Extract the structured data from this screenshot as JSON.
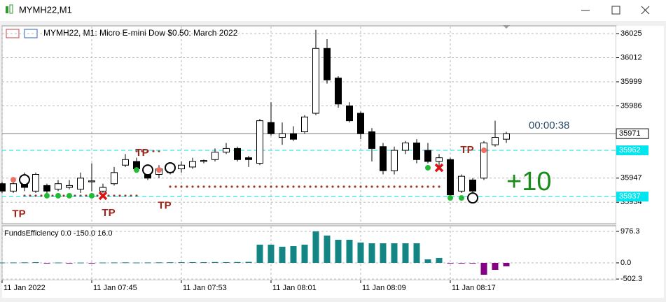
{
  "window": {
    "title": "MYMH22,M1"
  },
  "chart_data": [
    {
      "type": "candlestick",
      "title": "MYMH22, M1:  Micro E-mini Dow $0.50: March 2022",
      "categories": [
        "11 Jan 2022",
        null,
        null,
        null,
        null,
        null,
        null,
        null,
        "11 Jan 07:45",
        null,
        null,
        null,
        null,
        null,
        null,
        null,
        "11 Jan 07:53",
        null,
        null,
        null,
        null,
        null,
        null,
        null,
        "11 Jan 08:01",
        null,
        null,
        null,
        null,
        null,
        null,
        null,
        "11 Jan 08:09",
        null,
        null,
        null,
        null,
        null,
        null,
        null,
        "11 Jan 08:17",
        null,
        null,
        null,
        null,
        null
      ],
      "open": [
        35944,
        35940,
        35947,
        35940,
        35943,
        35941,
        35942,
        35941,
        35945,
        35940,
        35944,
        35954,
        35956,
        35952,
        35949,
        35950,
        35952,
        35953,
        35956,
        35957,
        35961,
        35963,
        35958,
        35955,
        35977,
        35969,
        35971,
        35972,
        35982,
        36017,
        36001,
        35986,
        35982,
        35972,
        35964,
        35951,
        35962,
        35966,
        35962,
        35956,
        35957,
        35940,
        35946,
        35947,
        35965,
        35968
      ],
      "high": [
        35945,
        35945,
        35950,
        35950,
        35944,
        35946,
        35946,
        35950,
        35955,
        35944,
        35953,
        35960,
        35958,
        35953,
        35954,
        35955,
        35956,
        35958,
        35957,
        35963,
        35966,
        35964,
        35959,
        35979,
        35988,
        35977,
        35975,
        35981,
        36027,
        36022,
        36002,
        35988,
        35983,
        35974,
        35966,
        35964,
        35967,
        35968,
        35966,
        35960,
        35958,
        35949,
        35947,
        35967,
        35978,
        35972
      ],
      "low": [
        35939,
        35939,
        35940,
        35939,
        35938,
        35940,
        35941,
        35939,
        35940,
        35939,
        35943,
        35953,
        35951,
        35946,
        35947,
        35949,
        35950,
        35952,
        35955,
        35956,
        35960,
        35956,
        35953,
        35954,
        35970,
        35965,
        35967,
        35971,
        35981,
        35998,
        35985,
        35977,
        35968,
        35956,
        35949,
        35949,
        35960,
        35955,
        35955,
        35952,
        35937,
        35939,
        35936,
        35946,
        35964,
        35966
      ],
      "close": [
        35940,
        35944,
        35942,
        35949,
        35940,
        35944,
        35943,
        35947,
        35945.5,
        35942,
        35950,
        35957,
        35952,
        35947,
        35952,
        35954,
        35954,
        35956,
        35956.5,
        35961,
        35963,
        35957,
        35957,
        35978,
        35971,
        35971,
        35968,
        35980,
        36017,
        36000,
        35987,
        35978,
        35971,
        35963,
        35951,
        35962,
        35966,
        35957,
        35956,
        35958,
        35938,
        35948,
        35940,
        35966,
        35969,
        35971
      ],
      "bull_color": "#ffffff",
      "bear_color": "#000000",
      "outline_color": "#000000",
      "ylim": [
        35922.4,
        36028.8
      ],
      "yticks": [
        36025,
        36012,
        35999,
        35986,
        35947,
        35934
      ],
      "grid": true,
      "current_price": 35971,
      "levels": [
        {
          "value": 35962,
          "color": "#00e5ee"
        },
        {
          "value": 35937,
          "color": "#00e5ee"
        }
      ],
      "dotted_levels": [
        {
          "value": 35937.5,
          "from": 2,
          "to": 12
        },
        {
          "value": 35961.6,
          "from": 12,
          "to": 14
        },
        {
          "value": 35942.4,
          "from": 15,
          "to": 39
        }
      ],
      "dotted_color": "#a0362a",
      "markers": [
        {
          "index": 1,
          "value": 35946.1,
          "color": "#f07060",
          "shape": "dot"
        },
        {
          "index": 2,
          "value": 35946.1,
          "color": "#000000",
          "shape": "ring"
        },
        {
          "index": 4,
          "value": 35937.5,
          "color": "#22bb33",
          "shape": "dot"
        },
        {
          "index": 5,
          "value": 35937.5,
          "color": "#22bb33",
          "shape": "dot"
        },
        {
          "index": 6,
          "value": 35937.5,
          "color": "#22bb33",
          "shape": "dot"
        },
        {
          "index": 8,
          "value": 35937.5,
          "color": "#22bb33",
          "shape": "dot"
        },
        {
          "index": 9,
          "value": 35937.5,
          "color": "#dd1111",
          "shape": "cross"
        },
        {
          "index": 12,
          "value": 35951.4,
          "color": "#22bb33",
          "shape": "dot"
        },
        {
          "index": 13,
          "value": 35951.4,
          "color": "#000000",
          "shape": "ring"
        },
        {
          "index": 14,
          "value": 35951.4,
          "color": "#f07060",
          "shape": "dot"
        },
        {
          "index": 15,
          "value": 35952.6,
          "color": "#000000",
          "shape": "ring"
        },
        {
          "index": 38,
          "value": 35952.6,
          "color": "#22bb33",
          "shape": "dot"
        },
        {
          "index": 39,
          "value": 35952.6,
          "color": "#dd1111",
          "shape": "cross"
        },
        {
          "index": 40,
          "value": 35936.3,
          "color": "#22bb33",
          "shape": "dot"
        },
        {
          "index": 41,
          "value": 35936.3,
          "color": "#22bb33",
          "shape": "dot"
        },
        {
          "index": 42,
          "value": 35936.3,
          "color": "#000000",
          "shape": "ring"
        },
        {
          "index": 43,
          "value": 35962,
          "color": "#f07060",
          "shape": "dot"
        }
      ],
      "annotations": [
        {
          "text": "TP",
          "index": 1.5,
          "value": 35927.5
        },
        {
          "text": "TP",
          "index": 9.5,
          "value": 35928
        },
        {
          "text": "TP",
          "index": 12.5,
          "value": 35960.5
        },
        {
          "text": "TP",
          "index": 14.5,
          "value": 35932
        },
        {
          "text": "TP",
          "index": 41.5,
          "value": 35962
        }
      ],
      "annotation_color": "#a0231a",
      "timer": "00:00:38",
      "profit_label": "+10",
      "profit_color": "#1a8a1a"
    },
    {
      "type": "histogram",
      "title": "FundsEfficiency 0.0 -150.0 16.0",
      "values": [
        10,
        12,
        15,
        20,
        -15,
        10,
        -12,
        8,
        -10,
        10,
        12,
        15,
        10,
        12,
        15,
        18,
        20,
        22,
        20,
        25,
        22,
        25,
        30,
        564,
        564,
        500,
        520,
        564,
        976,
        846,
        716,
        716,
        630,
        608,
        608,
        608,
        608,
        608,
        108,
        152,
        -10,
        -20,
        -20,
        -369,
        -217,
        -108
      ],
      "positive_color": "#138585",
      "negative_color": "#850085",
      "ylim": [
        -521,
        1128
      ],
      "yticks": [
        976.3,
        {
          "value": 0,
          "label": "0.0"
        },
        -502.3
      ],
      "grid": true
    }
  ]
}
